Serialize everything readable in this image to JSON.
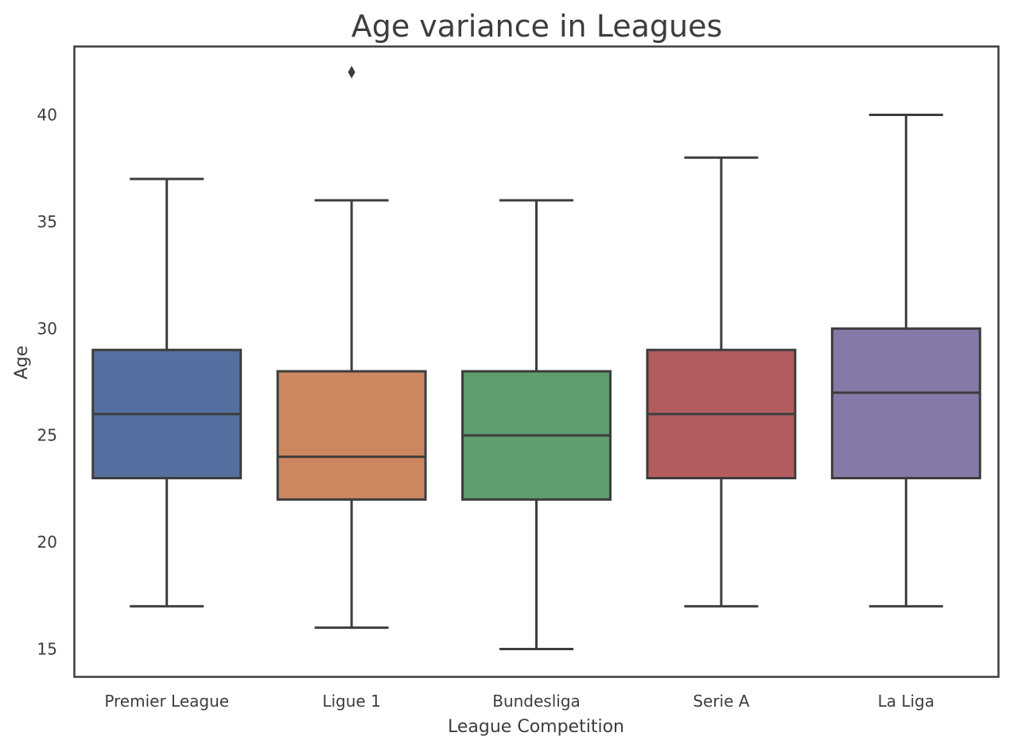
{
  "chart_data": {
    "type": "box",
    "title": "Age variance in Leagues",
    "xlabel": "League Competition",
    "ylabel": "Age",
    "ylim": [
      13.7,
      43.2
    ],
    "yticks": [
      15,
      20,
      25,
      30,
      35,
      40
    ],
    "grid": false,
    "categories": [
      "Premier League",
      "Ligue 1",
      "Bundesliga",
      "Serie A",
      "La Liga"
    ],
    "boxes": [
      {
        "category": "Premier League",
        "whisker_low": 17,
        "q1": 23,
        "median": 26,
        "q3": 29,
        "whisker_high": 37,
        "outliers": [],
        "color": "#5470a0"
      },
      {
        "category": "Ligue 1",
        "whisker_low": 16,
        "q1": 22,
        "median": 24,
        "q3": 28,
        "whisker_high": 36,
        "outliers": [
          42
        ],
        "color": "#cc8760"
      },
      {
        "category": "Bundesliga",
        "whisker_low": 15,
        "q1": 22,
        "median": 25,
        "q3": 28,
        "whisker_high": 36,
        "outliers": [],
        "color": "#5f9d6e"
      },
      {
        "category": "Serie A",
        "whisker_low": 17,
        "q1": 23,
        "median": 26,
        "q3": 29,
        "whisker_high": 38,
        "outliers": [],
        "color": "#b35c5f"
      },
      {
        "category": "La Liga",
        "whisker_low": 17,
        "q1": 23,
        "median": 27,
        "q3": 30,
        "whisker_high": 40,
        "outliers": [],
        "color": "#8479a7"
      }
    ]
  }
}
